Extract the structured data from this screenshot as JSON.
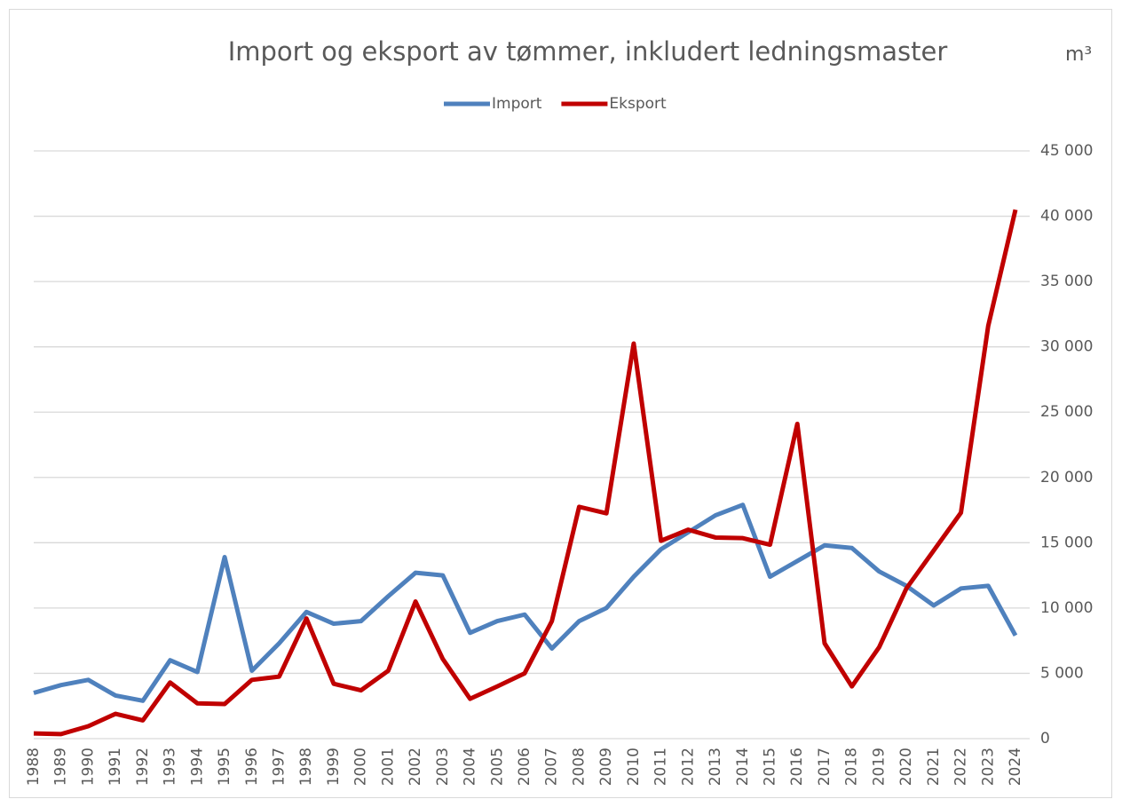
{
  "chart_data": {
    "type": "line",
    "title": "Import og eksport av tømmer, inkludert ledningsmaster",
    "unit_label": "m³",
    "categories": [
      "1988",
      "1989",
      "1990",
      "1991",
      "1992",
      "1993",
      "1994",
      "1995",
      "1996",
      "1997",
      "1998",
      "1999",
      "2000",
      "2001",
      "2002",
      "2003",
      "2004",
      "2005",
      "2006",
      "2007",
      "2008",
      "2009",
      "2010",
      "2011",
      "2012",
      "2013",
      "2014",
      "2015",
      "2016",
      "2017",
      "2018",
      "2019",
      "2020",
      "2021",
      "2022",
      "2023",
      "2024"
    ],
    "series": [
      {
        "name": "Import",
        "color": "#4f81bd",
        "values": [
          3500,
          4100,
          4500,
          3300,
          2900,
          6000,
          5100,
          13900,
          5200,
          7300,
          9700,
          8800,
          9000,
          10900,
          12700,
          12500,
          8100,
          9000,
          9500,
          6900,
          9000,
          10000,
          12400,
          14500,
          15800,
          17100,
          17900,
          12400,
          13600,
          14800,
          14600,
          12800,
          11700,
          10200,
          11500,
          11700,
          7900
        ]
      },
      {
        "name": "Eksport",
        "color": "#c00000",
        "values": [
          400,
          350,
          950,
          1900,
          1400,
          4300,
          2700,
          2650,
          4500,
          4750,
          9200,
          4200,
          3700,
          5200,
          10500,
          6100,
          3050,
          4000,
          5000,
          9000,
          17750,
          17250,
          30250,
          15150,
          16000,
          15400,
          15350,
          14850,
          24100,
          7300,
          4000,
          7000,
          11500,
          14400,
          17300,
          31600,
          40500
        ]
      }
    ],
    "ylim": [
      0,
      45000
    ],
    "yticks": [
      0,
      {
        "value": 5000,
        "label": "5 000"
      },
      {
        "value": 10000,
        "label": "10 000"
      },
      {
        "value": 15000,
        "label": "15 000"
      },
      {
        "value": 20000,
        "label": "20 000"
      },
      {
        "value": 25000,
        "label": "25 000"
      },
      {
        "value": 30000,
        "label": "30 000"
      },
      {
        "value": 35000,
        "label": "35 000"
      },
      {
        "value": 40000,
        "label": "40 000"
      },
      {
        "value": 45000,
        "label": "45 000"
      }
    ],
    "grid": true,
    "legend": "top"
  }
}
